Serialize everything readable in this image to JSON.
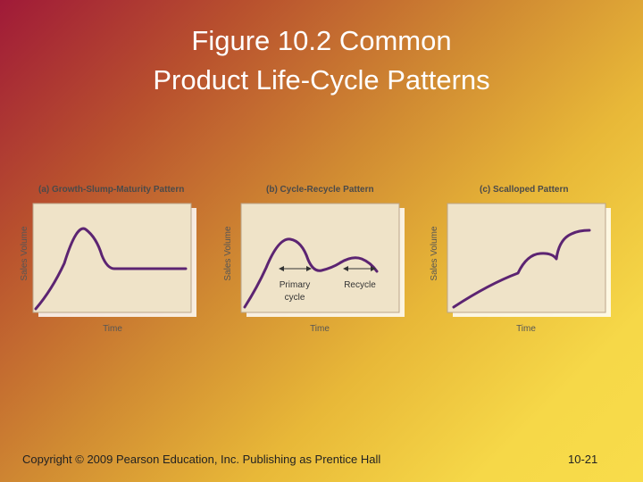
{
  "slide": {
    "title_line1": "Figure 10.2 Common",
    "title_line2": "Product Life-Cycle Patterns"
  },
  "panels": [
    {
      "title": "(a) Growth-Slump-Maturity Pattern",
      "y_axis": "Sales Volume",
      "x_axis": "Time"
    },
    {
      "title": "(b) Cycle-Recycle Pattern",
      "y_axis": "Sales Volume",
      "x_axis": "Time",
      "primary_label_line1": "Primary",
      "primary_label_line2": "cycle",
      "recycle_label": "Recycle"
    },
    {
      "title": "(c) Scalloped Pattern",
      "y_axis": "Sales Volume",
      "x_axis": "Time"
    }
  ],
  "footer": {
    "copyright": "Copyright © 2009 Pearson Education, Inc. Publishing as Prentice Hall",
    "page": "10-21"
  },
  "colors": {
    "curve": "#5c2472",
    "plot_background": "#efe3c8",
    "gradient_top_left": "#a01a38",
    "gradient_bottom_right": "#f8dc4a"
  }
}
